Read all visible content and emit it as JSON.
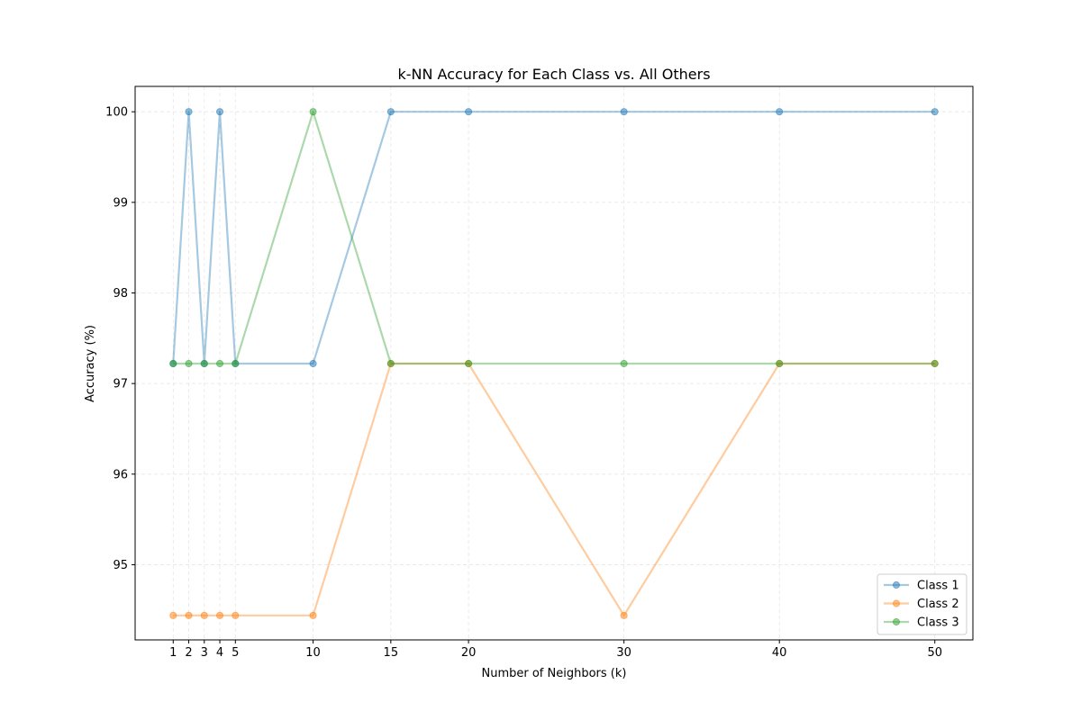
{
  "chart_data": {
    "type": "line",
    "title": "k-NN Accuracy for Each Class vs. All Others",
    "xlabel": "Number of Neighbors (k)",
    "ylabel": "Accuracy (%)",
    "x": [
      1,
      2,
      3,
      4,
      5,
      10,
      15,
      20,
      30,
      40,
      50
    ],
    "x_tick_labels": [
      "1",
      "2",
      "3",
      "4",
      "5",
      "10",
      "15",
      "20",
      "30",
      "40",
      "50"
    ],
    "xlim": [
      -1.45,
      52.45
    ],
    "ylim": [
      94.17,
      100.28
    ],
    "y_ticks": [
      95,
      96,
      97,
      98,
      99,
      100
    ],
    "y_tick_labels": [
      "95",
      "96",
      "97",
      "98",
      "99",
      "100"
    ],
    "grid": true,
    "legend_position": "lower-right",
    "series": [
      {
        "name": "Class 1",
        "color": "#1f77b4",
        "values": [
          97.22,
          100,
          97.22,
          100,
          97.22,
          97.22,
          100,
          100,
          100,
          100,
          100
        ]
      },
      {
        "name": "Class 2",
        "color": "#ff7f0e",
        "values": [
          94.44,
          94.44,
          94.44,
          94.44,
          94.44,
          94.44,
          97.22,
          97.22,
          94.44,
          97.22,
          97.22
        ]
      },
      {
        "name": "Class 3",
        "color": "#2ca02c",
        "values": [
          97.22,
          97.22,
          97.22,
          97.22,
          97.22,
          100,
          97.22,
          97.22,
          97.22,
          97.22,
          97.22
        ]
      }
    ]
  }
}
